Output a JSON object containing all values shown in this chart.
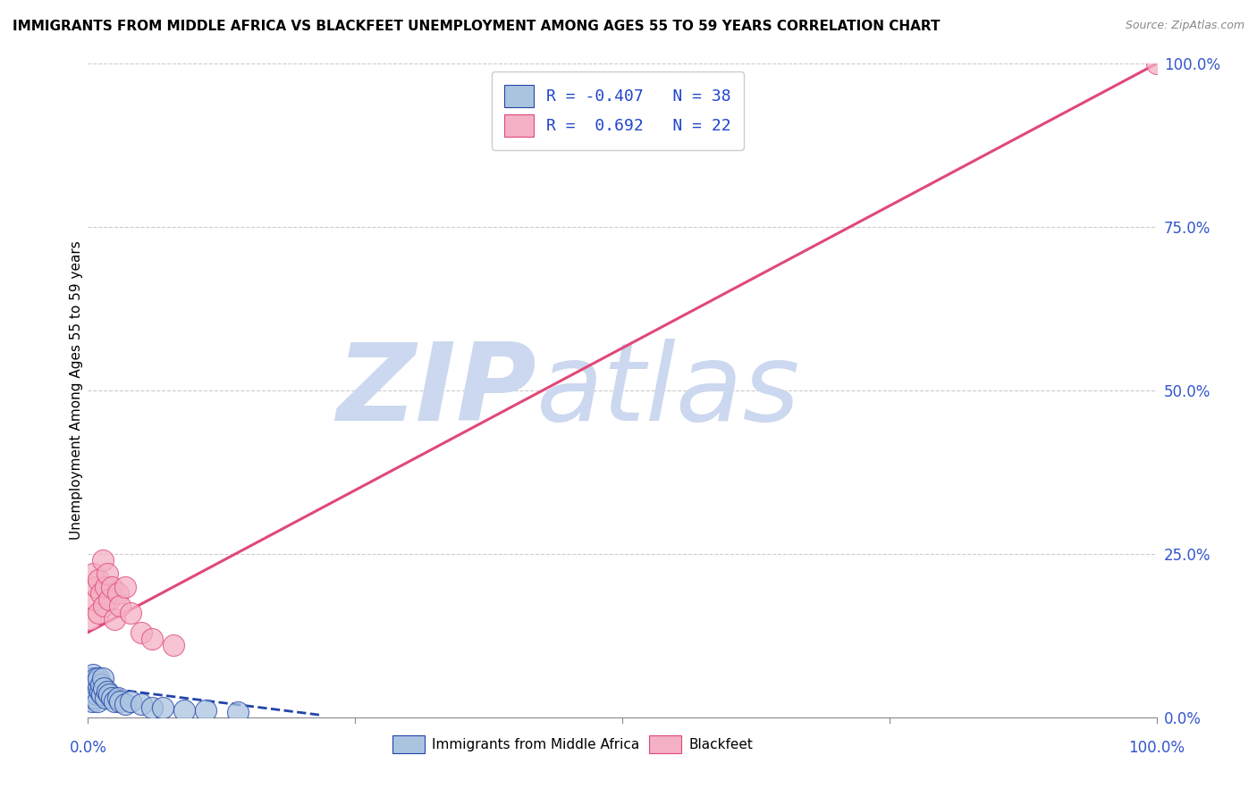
{
  "title": "IMMIGRANTS FROM MIDDLE AFRICA VS BLACKFEET UNEMPLOYMENT AMONG AGES 55 TO 59 YEARS CORRELATION CHART",
  "source": "Source: ZipAtlas.com",
  "ylabel": "Unemployment Among Ages 55 to 59 years",
  "xlim": [
    0,
    1.0
  ],
  "ylim": [
    0,
    1.0
  ],
  "xticks": [
    0.0,
    0.25,
    0.5,
    0.75,
    1.0
  ],
  "yticks": [
    0.0,
    0.25,
    0.5,
    0.75,
    1.0
  ],
  "ytick_labels": [
    "0.0%",
    "25.0%",
    "50.0%",
    "75.0%",
    "100.0%"
  ],
  "blue_scatter_x": [
    0.001,
    0.002,
    0.002,
    0.003,
    0.003,
    0.004,
    0.004,
    0.005,
    0.005,
    0.006,
    0.006,
    0.007,
    0.007,
    0.008,
    0.008,
    0.009,
    0.01,
    0.01,
    0.011,
    0.012,
    0.013,
    0.014,
    0.015,
    0.016,
    0.018,
    0.02,
    0.022,
    0.025,
    0.028,
    0.03,
    0.035,
    0.04,
    0.05,
    0.06,
    0.07,
    0.09,
    0.11,
    0.14
  ],
  "blue_scatter_y": [
    0.03,
    0.04,
    0.05,
    0.035,
    0.06,
    0.025,
    0.055,
    0.045,
    0.065,
    0.03,
    0.05,
    0.04,
    0.06,
    0.035,
    0.055,
    0.025,
    0.045,
    0.06,
    0.04,
    0.05,
    0.035,
    0.06,
    0.045,
    0.03,
    0.04,
    0.035,
    0.03,
    0.025,
    0.03,
    0.025,
    0.02,
    0.025,
    0.02,
    0.015,
    0.015,
    0.01,
    0.01,
    0.008
  ],
  "pink_scatter_x": [
    0.002,
    0.005,
    0.006,
    0.008,
    0.01,
    0.01,
    0.012,
    0.014,
    0.015,
    0.016,
    0.018,
    0.02,
    0.022,
    0.025,
    0.028,
    0.03,
    0.035,
    0.04,
    0.05,
    0.06,
    0.08,
    1.0
  ],
  "pink_scatter_y": [
    0.15,
    0.22,
    0.18,
    0.2,
    0.16,
    0.21,
    0.19,
    0.24,
    0.17,
    0.2,
    0.22,
    0.18,
    0.2,
    0.15,
    0.19,
    0.17,
    0.2,
    0.16,
    0.13,
    0.12,
    0.11,
    1.0
  ],
  "blue_R": -0.407,
  "blue_N": 38,
  "pink_R": 0.692,
  "pink_N": 22,
  "blue_color": "#aac4e0",
  "pink_color": "#f4b0c4",
  "blue_line_color": "#2244aa",
  "pink_line_color": "#e04878",
  "pink_trendline_x0": 0.0,
  "pink_trendline_y0": 0.13,
  "pink_trendline_x1": 1.0,
  "pink_trendline_y1": 1.0,
  "blue_trendline_x0": 0.0,
  "blue_trendline_y0": 0.048,
  "blue_trendline_x1": 0.22,
  "blue_trendline_y1": 0.003,
  "watermark_zip": "ZIP",
  "watermark_atlas": "atlas",
  "watermark_color": "#ccd8ef",
  "background_color": "#ffffff",
  "grid_color": "#cccccc",
  "title_fontsize": 11,
  "axis_label_fontsize": 11,
  "tick_fontsize": 12,
  "legend_fontsize": 13,
  "scatter_size": 300
}
